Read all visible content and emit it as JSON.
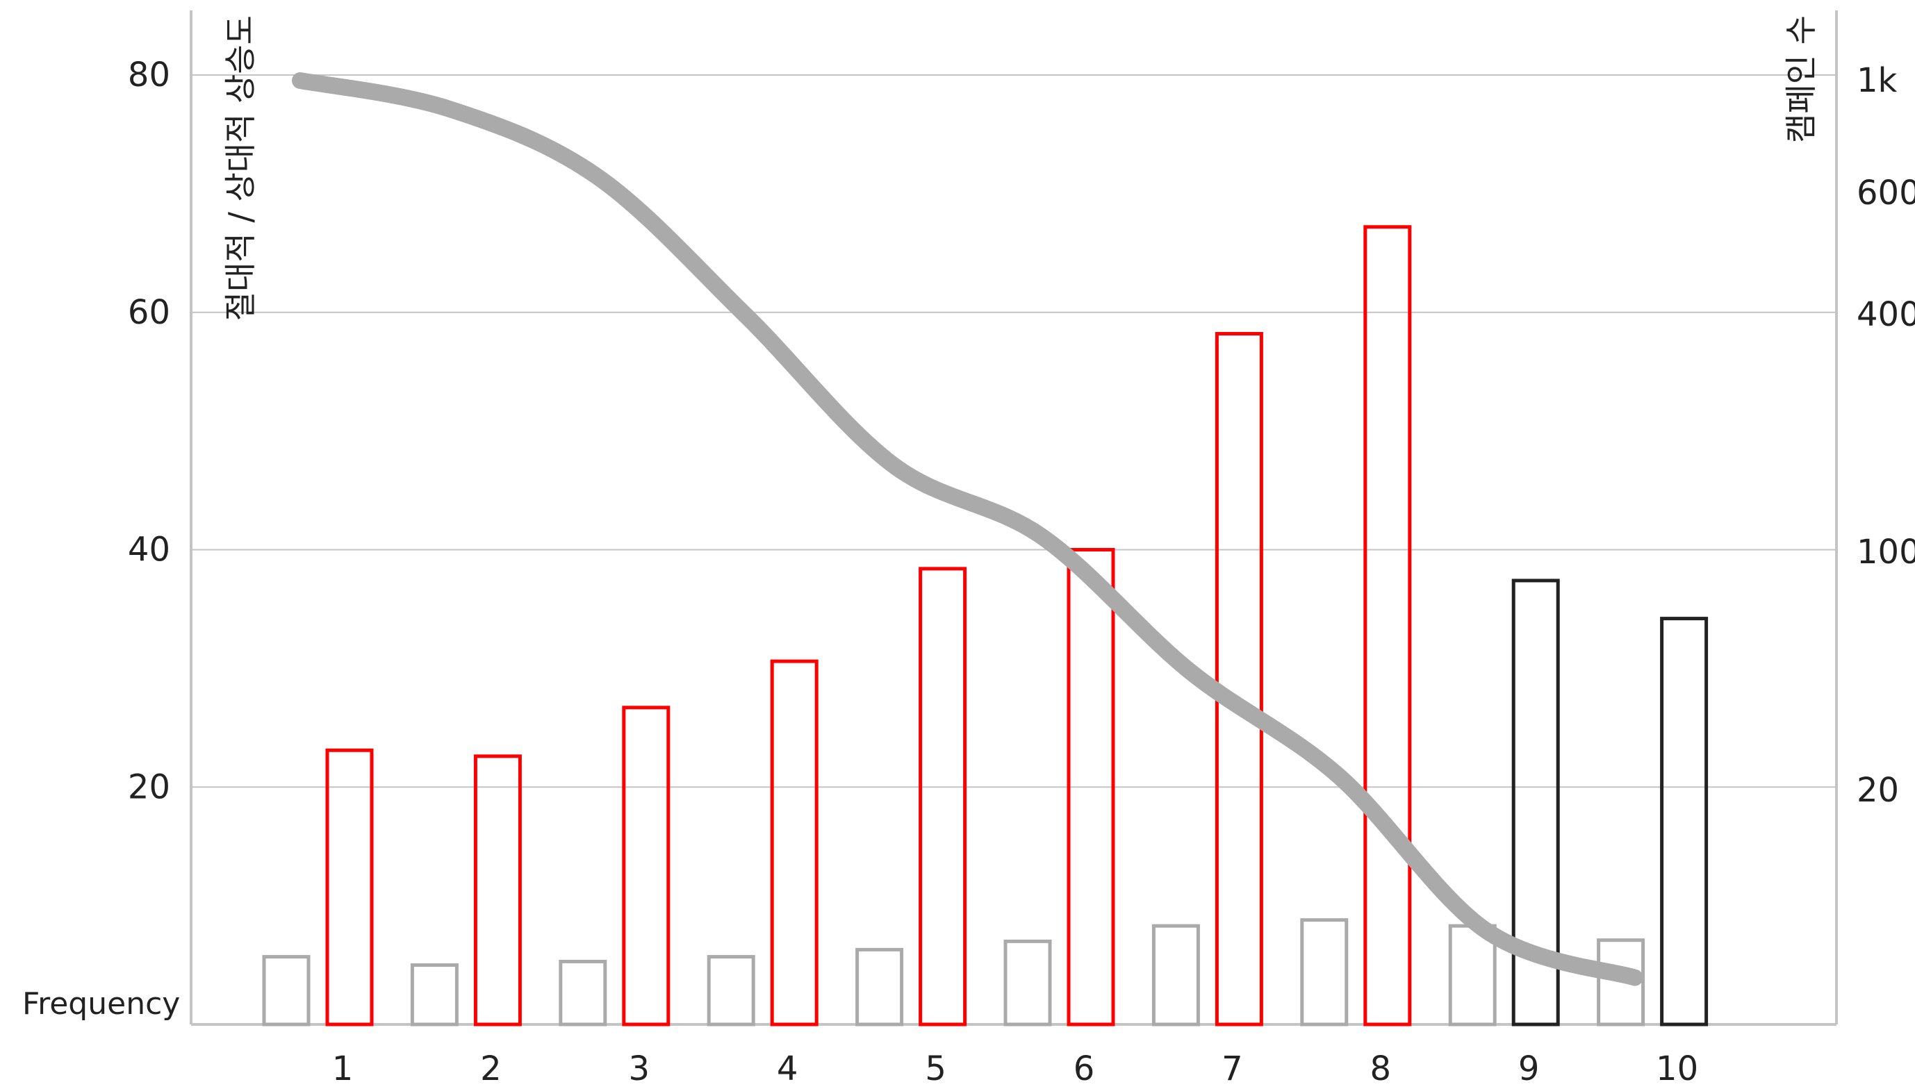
{
  "chart_data": {
    "type": "bar",
    "categories": [
      "1",
      "2",
      "3",
      "4",
      "5",
      "6",
      "7",
      "8",
      "9",
      "10"
    ],
    "series": [
      {
        "values": [
          5.7,
          5.0,
          5.3,
          5.7,
          6.3,
          7.0,
          8.3,
          8.8,
          8.3,
          7.1
        ],
        "color": "#aaaaaa"
      },
      {
        "values": [
          23.1,
          22.6,
          26.7,
          30.6,
          38.4,
          40.0,
          58.2,
          67.2,
          37.4,
          34.2
        ],
        "colors": [
          "#ff0000",
          "#ff0000",
          "#ff0000",
          "#ff0000",
          "#ff0000",
          "#ff0000",
          "#ff0000",
          "#ff0000",
          "#222222",
          "#222222"
        ]
      }
    ],
    "curve": {
      "axis": "right",
      "x": [
        1,
        2,
        3,
        4,
        5,
        6,
        7,
        8,
        9,
        10
      ],
      "values": [
        1000,
        900,
        660,
        400,
        210,
        120,
        60,
        25,
        8,
        4
      ],
      "color": "#aaaaaa"
    },
    "yaxis_left": {
      "label": "절대적 / 상대적 상승도",
      "ticks": [
        20,
        40,
        60,
        80
      ],
      "ylim": [
        0,
        80
      ]
    },
    "yaxis_right": {
      "label": "캠페인 수",
      "scale": "log-like",
      "ticks": [
        20,
        100,
        400,
        600,
        1000
      ],
      "tick_labels": [
        "20",
        "100",
        "400",
        "600",
        "1k"
      ]
    },
    "xlabel": "Frequency",
    "grid": true
  }
}
